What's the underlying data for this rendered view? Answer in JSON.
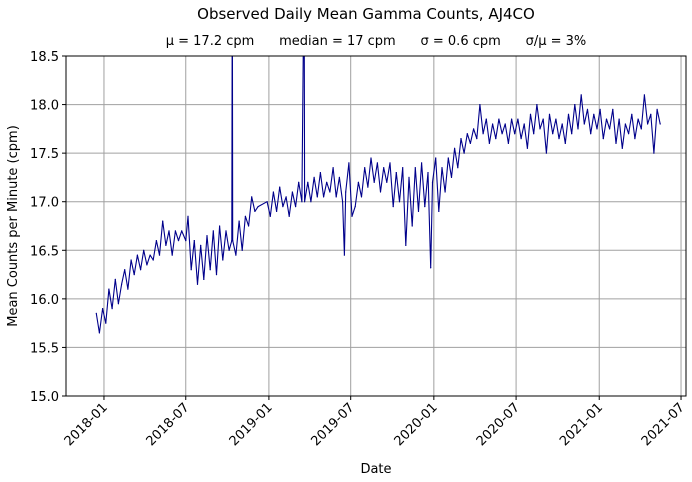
{
  "chart_data": {
    "type": "line",
    "title": "Observed Daily Mean Gamma Counts, AJ4CO",
    "subtitle": "μ = 17.2 cpm      median = 17 cpm      σ = 0.6 cpm      σ/μ = 3%",
    "xlabel": "Date",
    "ylabel": "Mean Counts per Minute (cpm)",
    "xlim": [
      "2017-10-09",
      "2021-07-12"
    ],
    "ylim": [
      15.0,
      18.5
    ],
    "x_ticks": [
      "2018-01",
      "2018-07",
      "2019-01",
      "2019-07",
      "2020-01",
      "2020-07",
      "2021-01",
      "2021-07"
    ],
    "y_ticks": [
      "15.0",
      "15.5",
      "16.0",
      "16.5",
      "17.0",
      "17.5",
      "18.0",
      "18.5"
    ],
    "grid": true,
    "line_color": "#00008b",
    "grid_color": "#a0a0a0",
    "series": [
      {
        "points": [
          [
            "2017-12-15",
            15.85
          ],
          [
            "2017-12-22",
            15.65
          ],
          [
            "2017-12-29",
            15.9
          ],
          [
            "2018-01-05",
            15.75
          ],
          [
            "2018-01-12",
            16.1
          ],
          [
            "2018-01-19",
            15.9
          ],
          [
            "2018-01-26",
            16.2
          ],
          [
            "2018-02-02",
            15.95
          ],
          [
            "2018-02-09",
            16.15
          ],
          [
            "2018-02-16",
            16.3
          ],
          [
            "2018-02-23",
            16.1
          ],
          [
            "2018-03-02",
            16.4
          ],
          [
            "2018-03-09",
            16.25
          ],
          [
            "2018-03-16",
            16.45
          ],
          [
            "2018-03-23",
            16.3
          ],
          [
            "2018-03-30",
            16.5
          ],
          [
            "2018-04-06",
            16.35
          ],
          [
            "2018-04-13",
            16.45
          ],
          [
            "2018-04-20",
            16.4
          ],
          [
            "2018-04-27",
            16.6
          ],
          [
            "2018-05-04",
            16.45
          ],
          [
            "2018-05-11",
            16.8
          ],
          [
            "2018-05-18",
            16.55
          ],
          [
            "2018-05-25",
            16.7
          ],
          [
            "2018-06-01",
            16.45
          ],
          [
            "2018-06-08",
            16.7
          ],
          [
            "2018-06-15",
            16.6
          ],
          [
            "2018-06-22",
            16.7
          ],
          [
            "2018-07-01",
            16.6
          ],
          [
            "2018-07-06",
            16.85
          ],
          [
            "2018-07-13",
            16.3
          ],
          [
            "2018-07-20",
            16.6
          ],
          [
            "2018-07-27",
            16.15
          ],
          [
            "2018-08-03",
            16.55
          ],
          [
            "2018-08-10",
            16.2
          ],
          [
            "2018-08-17",
            16.65
          ],
          [
            "2018-08-24",
            16.3
          ],
          [
            "2018-08-31",
            16.7
          ],
          [
            "2018-09-07",
            16.25
          ],
          [
            "2018-09-14",
            16.75
          ],
          [
            "2018-09-21",
            16.4
          ],
          [
            "2018-09-28",
            16.7
          ],
          [
            "2018-10-05",
            16.5
          ],
          [
            "2018-10-11",
            16.6
          ],
          [
            "2018-10-12",
            19.5
          ],
          [
            "2018-10-13",
            16.6
          ],
          [
            "2018-10-20",
            16.45
          ],
          [
            "2018-10-27",
            16.8
          ],
          [
            "2018-11-03",
            16.5
          ],
          [
            "2018-11-10",
            16.85
          ],
          [
            "2018-11-17",
            16.75
          ],
          [
            "2018-11-24",
            17.05
          ],
          [
            "2018-12-01",
            16.9
          ],
          [
            "2018-12-08",
            16.95
          ],
          [
            "2018-12-28",
            17.0
          ],
          [
            "2019-01-04",
            16.85
          ],
          [
            "2019-01-11",
            17.1
          ],
          [
            "2019-01-18",
            16.9
          ],
          [
            "2019-01-25",
            17.15
          ],
          [
            "2019-02-01",
            16.95
          ],
          [
            "2019-02-08",
            17.05
          ],
          [
            "2019-02-15",
            16.85
          ],
          [
            "2019-02-22",
            17.1
          ],
          [
            "2019-03-01",
            16.95
          ],
          [
            "2019-03-08",
            17.2
          ],
          [
            "2019-03-15",
            17.0
          ],
          [
            "2019-03-20",
            19.5
          ],
          [
            "2019-03-21",
            17.0
          ],
          [
            "2019-03-28",
            17.2
          ],
          [
            "2019-04-04",
            17.0
          ],
          [
            "2019-04-11",
            17.25
          ],
          [
            "2019-04-18",
            17.05
          ],
          [
            "2019-04-25",
            17.3
          ],
          [
            "2019-05-02",
            17.05
          ],
          [
            "2019-05-09",
            17.2
          ],
          [
            "2019-05-16",
            17.1
          ],
          [
            "2019-05-23",
            17.35
          ],
          [
            "2019-05-30",
            17.05
          ],
          [
            "2019-06-06",
            17.25
          ],
          [
            "2019-06-13",
            17.0
          ],
          [
            "2019-06-17",
            16.45
          ],
          [
            "2019-06-20",
            17.1
          ],
          [
            "2019-06-27",
            17.4
          ],
          [
            "2019-07-04",
            16.85
          ],
          [
            "2019-07-11",
            16.95
          ],
          [
            "2019-07-18",
            17.2
          ],
          [
            "2019-07-25",
            17.05
          ],
          [
            "2019-08-01",
            17.35
          ],
          [
            "2019-08-08",
            17.15
          ],
          [
            "2019-08-15",
            17.45
          ],
          [
            "2019-08-22",
            17.2
          ],
          [
            "2019-08-29",
            17.4
          ],
          [
            "2019-09-05",
            17.1
          ],
          [
            "2019-09-12",
            17.35
          ],
          [
            "2019-09-19",
            17.2
          ],
          [
            "2019-09-26",
            17.4
          ],
          [
            "2019-10-03",
            16.95
          ],
          [
            "2019-10-10",
            17.3
          ],
          [
            "2019-10-17",
            17.0
          ],
          [
            "2019-10-24",
            17.35
          ],
          [
            "2019-10-31",
            16.55
          ],
          [
            "2019-11-07",
            17.25
          ],
          [
            "2019-11-14",
            16.75
          ],
          [
            "2019-11-21",
            17.35
          ],
          [
            "2019-11-28",
            16.9
          ],
          [
            "2019-12-05",
            17.4
          ],
          [
            "2019-12-12",
            16.95
          ],
          [
            "2019-12-19",
            17.3
          ],
          [
            "2019-12-25",
            16.32
          ],
          [
            "2019-12-29",
            17.2
          ],
          [
            "2020-01-05",
            17.45
          ],
          [
            "2020-01-12",
            16.9
          ],
          [
            "2020-01-19",
            17.35
          ],
          [
            "2020-01-26",
            17.1
          ],
          [
            "2020-02-02",
            17.45
          ],
          [
            "2020-02-09",
            17.25
          ],
          [
            "2020-02-16",
            17.55
          ],
          [
            "2020-02-23",
            17.35
          ],
          [
            "2020-03-01",
            17.65
          ],
          [
            "2020-03-08",
            17.5
          ],
          [
            "2020-03-15",
            17.7
          ],
          [
            "2020-03-22",
            17.6
          ],
          [
            "2020-03-29",
            17.75
          ],
          [
            "2020-04-05",
            17.65
          ],
          [
            "2020-04-12",
            18.0
          ],
          [
            "2020-04-19",
            17.7
          ],
          [
            "2020-04-26",
            17.85
          ],
          [
            "2020-05-03",
            17.6
          ],
          [
            "2020-05-10",
            17.8
          ],
          [
            "2020-05-17",
            17.65
          ],
          [
            "2020-05-24",
            17.85
          ],
          [
            "2020-05-31",
            17.7
          ],
          [
            "2020-06-07",
            17.8
          ],
          [
            "2020-06-14",
            17.6
          ],
          [
            "2020-06-21",
            17.85
          ],
          [
            "2020-06-28",
            17.7
          ],
          [
            "2020-07-05",
            17.85
          ],
          [
            "2020-07-12",
            17.65
          ],
          [
            "2020-07-19",
            17.8
          ],
          [
            "2020-07-26",
            17.55
          ],
          [
            "2020-08-02",
            17.9
          ],
          [
            "2020-08-09",
            17.7
          ],
          [
            "2020-08-16",
            18.0
          ],
          [
            "2020-08-23",
            17.75
          ],
          [
            "2020-08-30",
            17.85
          ],
          [
            "2020-09-06",
            17.5
          ],
          [
            "2020-09-13",
            17.9
          ],
          [
            "2020-09-20",
            17.7
          ],
          [
            "2020-09-27",
            17.85
          ],
          [
            "2020-10-04",
            17.65
          ],
          [
            "2020-10-11",
            17.8
          ],
          [
            "2020-10-18",
            17.6
          ],
          [
            "2020-10-25",
            17.9
          ],
          [
            "2020-11-01",
            17.7
          ],
          [
            "2020-11-08",
            18.0
          ],
          [
            "2020-11-15",
            17.75
          ],
          [
            "2020-11-22",
            18.1
          ],
          [
            "2020-11-29",
            17.8
          ],
          [
            "2020-12-06",
            17.95
          ],
          [
            "2020-12-13",
            17.7
          ],
          [
            "2020-12-20",
            17.9
          ],
          [
            "2020-12-27",
            17.75
          ],
          [
            "2021-01-03",
            17.95
          ],
          [
            "2021-01-10",
            17.65
          ],
          [
            "2021-01-17",
            17.85
          ],
          [
            "2021-01-24",
            17.75
          ],
          [
            "2021-01-31",
            17.95
          ],
          [
            "2021-02-07",
            17.6
          ],
          [
            "2021-02-14",
            17.85
          ],
          [
            "2021-02-21",
            17.55
          ],
          [
            "2021-02-28",
            17.8
          ],
          [
            "2021-03-07",
            17.7
          ],
          [
            "2021-03-14",
            17.9
          ],
          [
            "2021-03-21",
            17.65
          ],
          [
            "2021-03-28",
            17.85
          ],
          [
            "2021-04-04",
            17.75
          ],
          [
            "2021-04-11",
            18.1
          ],
          [
            "2021-04-18",
            17.8
          ],
          [
            "2021-04-25",
            17.9
          ],
          [
            "2021-05-02",
            17.5
          ],
          [
            "2021-05-09",
            17.95
          ],
          [
            "2021-05-16",
            17.8
          ]
        ]
      }
    ]
  }
}
